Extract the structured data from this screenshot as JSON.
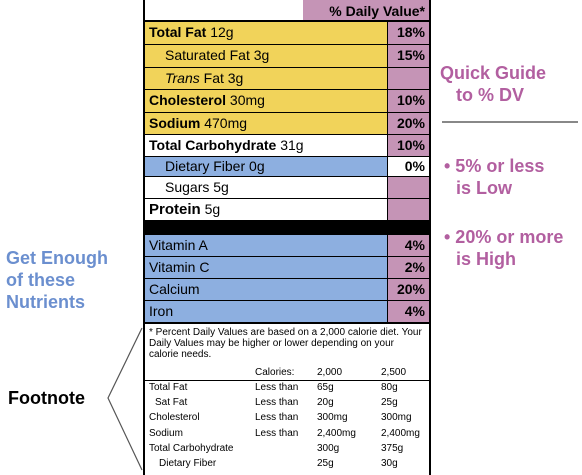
{
  "header": {
    "daily_value": "% Daily Value*"
  },
  "rows": [
    {
      "name": "Total Fat",
      "amount": "12g",
      "pct": "18%"
    },
    {
      "name": "Saturated Fat",
      "amount": "3g",
      "pct": "15%"
    },
    {
      "name": "Trans",
      "amount": "Fat 3g",
      "pct": ""
    },
    {
      "name": "Cholesterol",
      "amount": "30mg",
      "pct": "10%"
    },
    {
      "name": "Sodium",
      "amount": "470mg",
      "pct": "20%"
    },
    {
      "name": "Total Carbohydrate",
      "amount": "31g",
      "pct": "10%"
    },
    {
      "name": "Dietary Fiber",
      "amount": "0g",
      "pct": "0%"
    },
    {
      "name": "Sugars",
      "amount": "5g",
      "pct": ""
    },
    {
      "name": "Protein",
      "amount": "5g",
      "pct": ""
    },
    {
      "name": "Vitamin A",
      "amount": "",
      "pct": "4%"
    },
    {
      "name": "Vitamin C",
      "amount": "",
      "pct": "2%"
    },
    {
      "name": "Calcium",
      "amount": "",
      "pct": "20%"
    },
    {
      "name": "Iron",
      "amount": "",
      "pct": "4%"
    }
  ],
  "footnote": {
    "text": "* Percent Daily Values are based on a 2,000 calorie diet. Your Daily Values may be higher or lower depending on your calorie needs.",
    "calories_label": "Calories:",
    "cal_2000": "2,000",
    "cal_2500": "2,500",
    "table": [
      {
        "name": "Total Fat",
        "qual": "Less than",
        "a": "65g",
        "b": "80g"
      },
      {
        "name": "Sat Fat",
        "qual": "Less than",
        "a": "20g",
        "b": "25g"
      },
      {
        "name": "Cholesterol",
        "qual": "Less than",
        "a": "300mg",
        "b": "300mg"
      },
      {
        "name": "Sodium",
        "qual": "Less than",
        "a": "2,400mg",
        "b": "2,400mg"
      },
      {
        "name": "Total Carbohydrate",
        "qual": "",
        "a": "300g",
        "b": "375g"
      },
      {
        "name": "Dietary Fiber",
        "qual": "",
        "a": "25g",
        "b": "30g"
      }
    ]
  },
  "annotations": {
    "quick_guide_line1": "Quick Guide",
    "quick_guide_line2": "to % DV",
    "bullet1_line1": "• 5% or less",
    "bullet1_line2": "is Low",
    "bullet2_line1": "• 20% or more",
    "bullet2_line2": "is High",
    "get_enough_line1": "Get Enough",
    "get_enough_line2": "of these",
    "get_enough_line3": "Nutrients",
    "footnote_label": "Footnote"
  },
  "colors": {
    "pink": "#c594b6",
    "yellow": "#f1d35a",
    "blue": "#8dafe0",
    "annotation_pink": "#b25fa0",
    "annotation_blue": "#6b8fcf"
  }
}
